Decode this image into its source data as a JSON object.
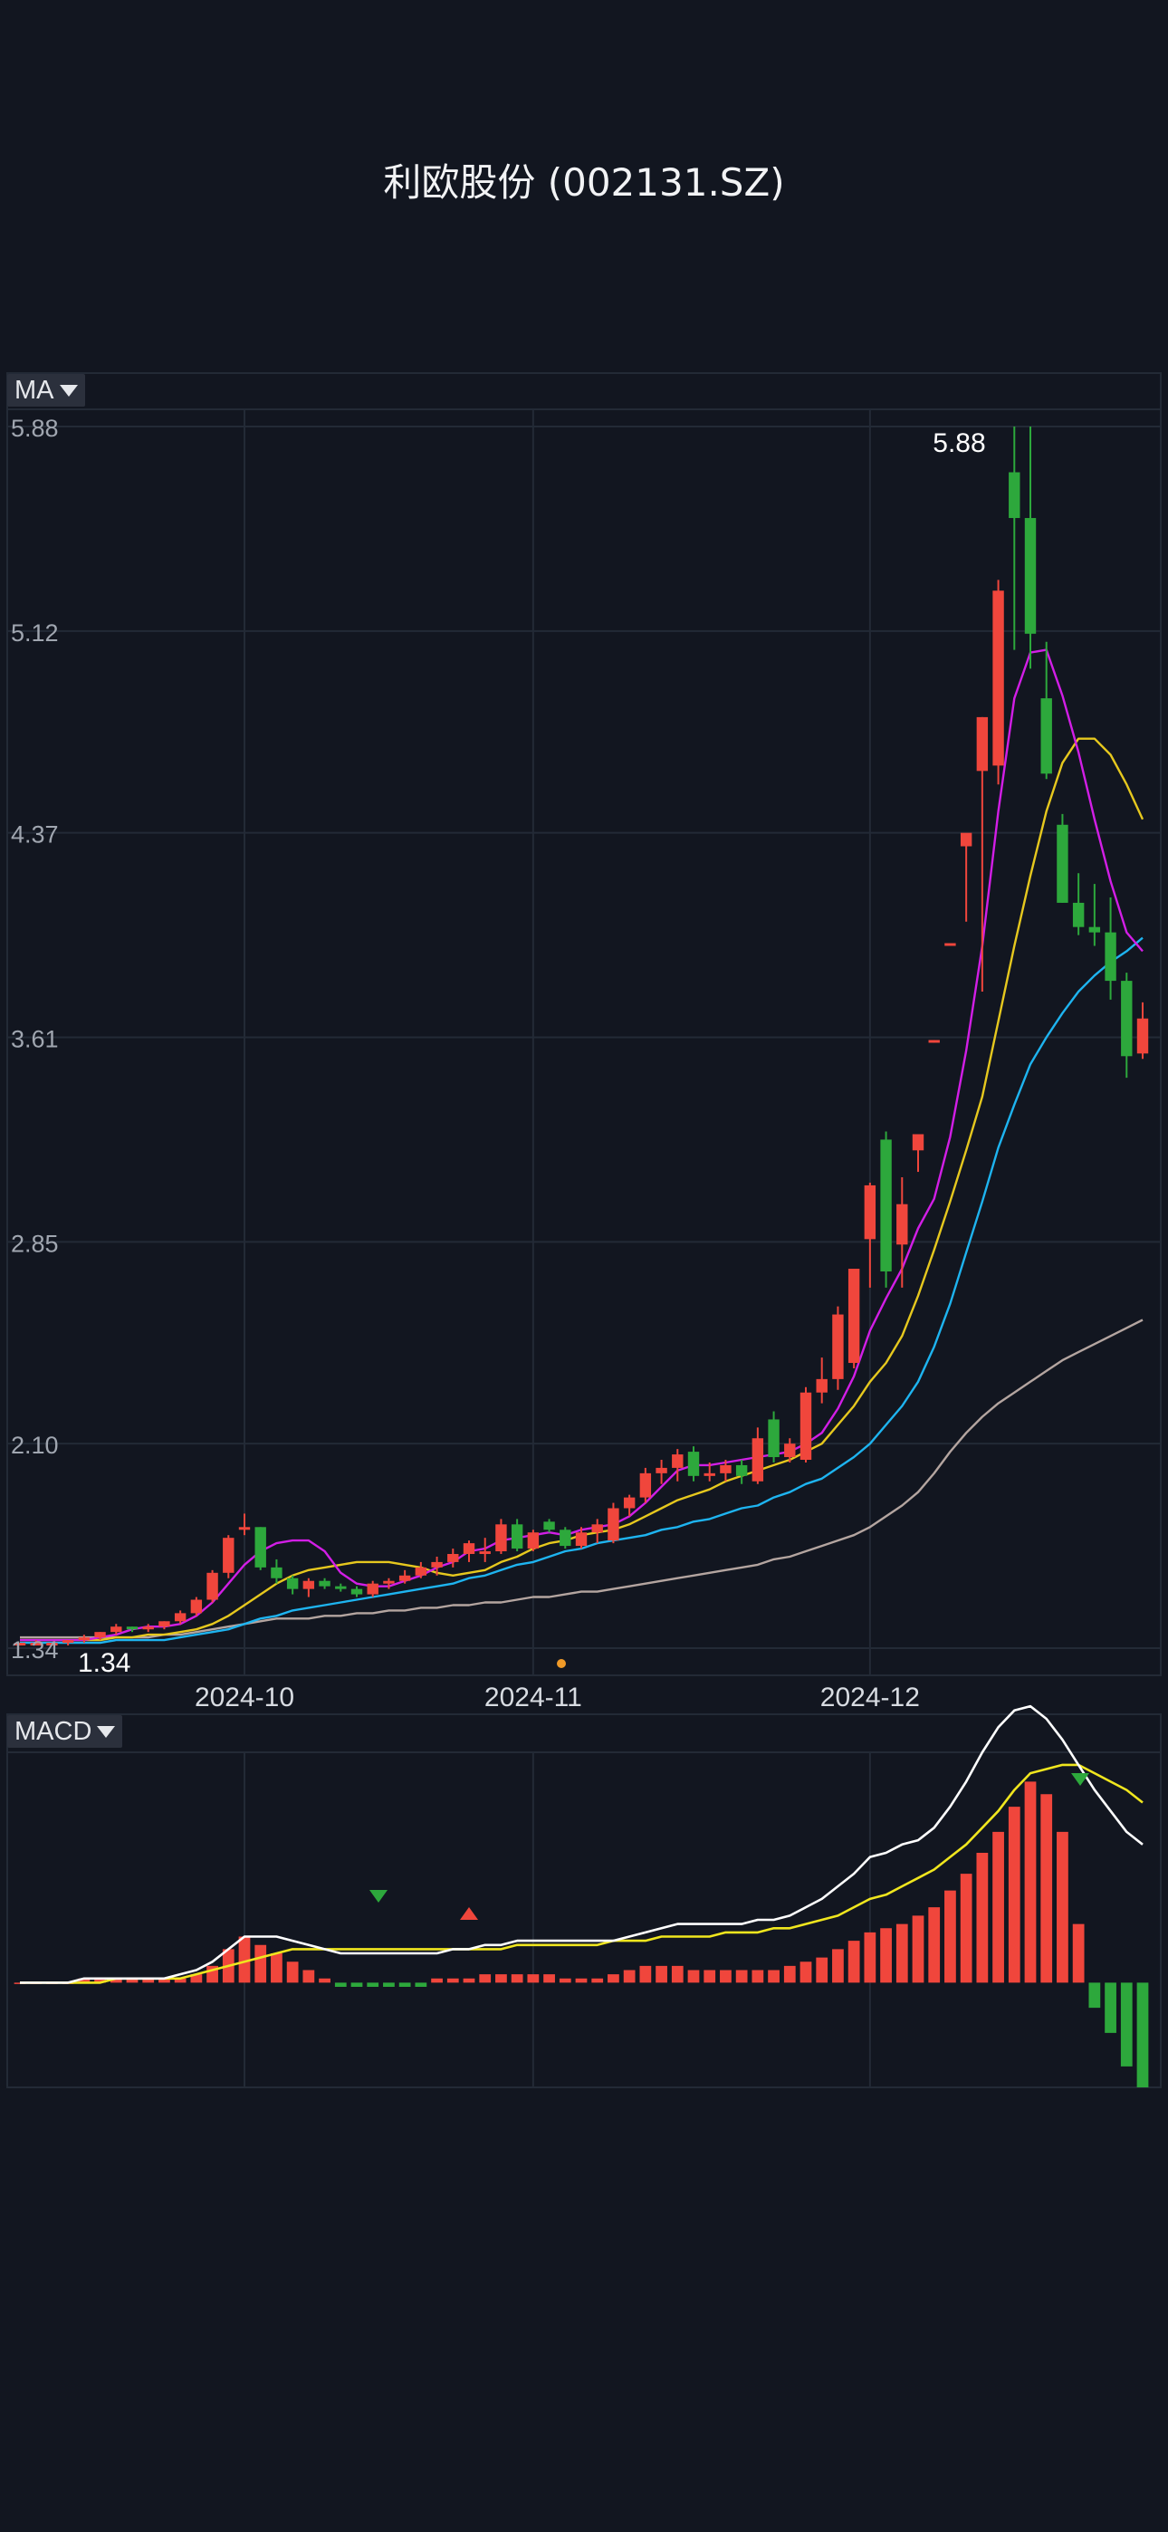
{
  "title": "利欧股份 (002131.SZ)",
  "ma_button": {
    "label": "MA"
  },
  "macd_button": {
    "label": "MACD"
  },
  "colors": {
    "background": "#121620",
    "grid": "#232a36",
    "up": "#f0463c",
    "down": "#2da83c",
    "ma5": "#d21ee6",
    "ma10": "#e6c81e",
    "ma20": "#1eb4f0",
    "ma60": "#b4a5a0",
    "dif": "#ffffff",
    "dea": "#f0e61e",
    "axis_text": "#a0a6b0"
  },
  "chart_data": [
    {
      "type": "candlestick",
      "y_ticks": [
        "5.88",
        "5.12",
        "4.37",
        "3.61",
        "2.85",
        "2.10",
        "1.34"
      ],
      "ylim": [
        1.34,
        5.88
      ],
      "x_ticks": [
        {
          "label": "2024-10",
          "index": 14
        },
        {
          "label": "2024-11",
          "index": 32
        },
        {
          "label": "2024-12",
          "index": 53
        }
      ],
      "max_label": "5.88",
      "min_label": "1.34",
      "candles": [
        [
          1.36,
          1.36,
          1.35,
          1.36
        ],
        [
          1.36,
          1.37,
          1.35,
          1.36
        ],
        [
          1.36,
          1.36,
          1.35,
          1.36
        ],
        [
          1.36,
          1.37,
          1.35,
          1.37
        ],
        [
          1.37,
          1.39,
          1.36,
          1.38
        ],
        [
          1.38,
          1.4,
          1.37,
          1.4
        ],
        [
          1.4,
          1.43,
          1.39,
          1.42
        ],
        [
          1.42,
          1.42,
          1.4,
          1.41
        ],
        [
          1.41,
          1.43,
          1.4,
          1.42
        ],
        [
          1.42,
          1.44,
          1.41,
          1.44
        ],
        [
          1.44,
          1.48,
          1.43,
          1.47
        ],
        [
          1.47,
          1.53,
          1.46,
          1.52
        ],
        [
          1.52,
          1.63,
          1.51,
          1.62
        ],
        [
          1.62,
          1.76,
          1.6,
          1.75
        ],
        [
          1.79,
          1.84,
          1.76,
          1.79
        ],
        [
          1.79,
          1.79,
          1.63,
          1.64
        ],
        [
          1.64,
          1.67,
          1.58,
          1.6
        ],
        [
          1.6,
          1.61,
          1.54,
          1.56
        ],
        [
          1.56,
          1.6,
          1.53,
          1.59
        ],
        [
          1.59,
          1.6,
          1.56,
          1.57
        ],
        [
          1.57,
          1.58,
          1.55,
          1.56
        ],
        [
          1.56,
          1.57,
          1.53,
          1.54
        ],
        [
          1.54,
          1.59,
          1.53,
          1.58
        ],
        [
          1.58,
          1.6,
          1.56,
          1.59
        ],
        [
          1.59,
          1.63,
          1.58,
          1.61
        ],
        [
          1.61,
          1.66,
          1.6,
          1.64
        ],
        [
          1.64,
          1.68,
          1.61,
          1.66
        ],
        [
          1.66,
          1.71,
          1.64,
          1.69
        ],
        [
          1.69,
          1.74,
          1.66,
          1.73
        ],
        [
          1.69,
          1.75,
          1.66,
          1.7
        ],
        [
          1.7,
          1.82,
          1.69,
          1.8
        ],
        [
          1.8,
          1.82,
          1.7,
          1.71
        ],
        [
          1.71,
          1.78,
          1.7,
          1.77
        ],
        [
          1.81,
          1.82,
          1.77,
          1.78
        ],
        [
          1.78,
          1.79,
          1.71,
          1.72
        ],
        [
          1.72,
          1.79,
          1.71,
          1.77
        ],
        [
          1.77,
          1.82,
          1.73,
          1.8
        ],
        [
          1.74,
          1.88,
          1.73,
          1.86
        ],
        [
          1.86,
          1.91,
          1.83,
          1.9
        ],
        [
          1.9,
          2.01,
          1.88,
          1.99
        ],
        [
          1.99,
          2.04,
          1.95,
          2.01
        ],
        [
          2.01,
          2.08,
          1.96,
          2.06
        ],
        [
          2.07,
          2.09,
          1.96,
          1.98
        ],
        [
          1.98,
          2.03,
          1.96,
          1.99
        ],
        [
          1.99,
          2.04,
          1.96,
          2.02
        ],
        [
          2.02,
          2.04,
          1.95,
          1.98
        ],
        [
          1.96,
          2.16,
          1.95,
          2.12
        ],
        [
          2.19,
          2.22,
          2.03,
          2.05
        ],
        [
          2.05,
          2.12,
          2.03,
          2.1
        ],
        [
          2.04,
          2.31,
          2.03,
          2.29
        ],
        [
          2.29,
          2.42,
          2.25,
          2.34
        ],
        [
          2.34,
          2.61,
          2.3,
          2.58
        ],
        [
          2.4,
          2.74,
          2.38,
          2.75
        ],
        [
          2.86,
          3.07,
          2.68,
          3.06
        ],
        [
          3.23,
          3.26,
          2.68,
          2.74
        ],
        [
          2.84,
          3.09,
          2.68,
          2.99
        ],
        [
          3.19,
          3.23,
          3.11,
          3.25
        ],
        [
          3.59,
          3.6,
          3.59,
          3.6
        ],
        [
          3.96,
          3.96,
          3.95,
          3.96
        ],
        [
          4.32,
          4.36,
          4.04,
          4.37
        ],
        [
          4.6,
          4.8,
          3.78,
          4.8
        ],
        [
          4.62,
          5.31,
          4.55,
          5.27
        ],
        [
          5.71,
          5.88,
          5.05,
          5.54
        ],
        [
          5.54,
          5.88,
          4.98,
          5.11
        ],
        [
          4.87,
          5.08,
          4.57,
          4.59
        ],
        [
          4.4,
          4.44,
          4.11,
          4.11
        ],
        [
          4.11,
          4.22,
          3.99,
          4.02
        ],
        [
          4.02,
          4.18,
          3.95,
          4.0
        ],
        [
          4.0,
          4.13,
          3.75,
          3.82
        ],
        [
          3.82,
          3.85,
          3.46,
          3.54
        ],
        [
          3.55,
          3.74,
          3.53,
          3.68
        ]
      ],
      "ma5": [
        1.37,
        1.37,
        1.37,
        1.37,
        1.37,
        1.38,
        1.39,
        1.41,
        1.42,
        1.42,
        1.43,
        1.46,
        1.51,
        1.58,
        1.65,
        1.7,
        1.73,
        1.74,
        1.74,
        1.7,
        1.62,
        1.58,
        1.57,
        1.57,
        1.59,
        1.61,
        1.64,
        1.66,
        1.7,
        1.71,
        1.74,
        1.75,
        1.76,
        1.77,
        1.76,
        1.78,
        1.79,
        1.8,
        1.83,
        1.88,
        1.94,
        2.0,
        2.02,
        2.02,
        2.03,
        2.04,
        2.05,
        2.06,
        2.07,
        2.1,
        2.14,
        2.23,
        2.35,
        2.52,
        2.64,
        2.75,
        2.9,
        3.01,
        3.24,
        3.56,
        3.95,
        4.45,
        4.87,
        5.04,
        5.05,
        4.88,
        4.67,
        4.42,
        4.19,
        4.0,
        3.93
      ],
      "ma10": [
        1.37,
        1.37,
        1.37,
        1.37,
        1.37,
        1.37,
        1.38,
        1.38,
        1.39,
        1.39,
        1.4,
        1.41,
        1.43,
        1.46,
        1.5,
        1.54,
        1.58,
        1.61,
        1.63,
        1.64,
        1.65,
        1.66,
        1.66,
        1.66,
        1.65,
        1.64,
        1.62,
        1.61,
        1.62,
        1.63,
        1.66,
        1.68,
        1.71,
        1.73,
        1.74,
        1.76,
        1.77,
        1.78,
        1.8,
        1.83,
        1.86,
        1.89,
        1.91,
        1.93,
        1.96,
        1.98,
        2.0,
        2.02,
        2.04,
        2.07,
        2.1,
        2.17,
        2.24,
        2.33,
        2.4,
        2.5,
        2.65,
        2.82,
        3.0,
        3.19,
        3.39,
        3.67,
        3.95,
        4.21,
        4.45,
        4.63,
        4.72,
        4.72,
        4.66,
        4.55,
        4.42
      ],
      "ma20": [
        1.36,
        1.36,
        1.36,
        1.36,
        1.36,
        1.36,
        1.37,
        1.37,
        1.37,
        1.37,
        1.38,
        1.39,
        1.4,
        1.41,
        1.43,
        1.45,
        1.46,
        1.48,
        1.49,
        1.5,
        1.51,
        1.52,
        1.53,
        1.54,
        1.55,
        1.56,
        1.57,
        1.58,
        1.6,
        1.61,
        1.63,
        1.65,
        1.66,
        1.68,
        1.7,
        1.71,
        1.73,
        1.74,
        1.75,
        1.76,
        1.78,
        1.79,
        1.81,
        1.82,
        1.84,
        1.86,
        1.87,
        1.9,
        1.92,
        1.95,
        1.97,
        2.01,
        2.05,
        2.1,
        2.17,
        2.24,
        2.33,
        2.46,
        2.62,
        2.81,
        3.0,
        3.2,
        3.36,
        3.51,
        3.61,
        3.7,
        3.78,
        3.84,
        3.89,
        3.93,
        3.98
      ],
      "ma60": [
        1.38,
        1.38,
        1.38,
        1.38,
        1.38,
        1.38,
        1.38,
        1.38,
        1.38,
        1.39,
        1.39,
        1.4,
        1.41,
        1.42,
        1.43,
        1.44,
        1.45,
        1.45,
        1.45,
        1.46,
        1.46,
        1.47,
        1.47,
        1.48,
        1.48,
        1.49,
        1.49,
        1.5,
        1.5,
        1.51,
        1.51,
        1.52,
        1.53,
        1.53,
        1.54,
        1.55,
        1.55,
        1.56,
        1.57,
        1.58,
        1.59,
        1.6,
        1.61,
        1.62,
        1.63,
        1.64,
        1.65,
        1.67,
        1.68,
        1.7,
        1.72,
        1.74,
        1.76,
        1.79,
        1.83,
        1.87,
        1.92,
        1.99,
        2.07,
        2.14,
        2.2,
        2.25,
        2.29,
        2.33,
        2.37,
        2.41,
        2.44,
        2.47,
        2.5,
        2.53,
        2.56
      ]
    },
    {
      "type": "macd",
      "ylim": [
        -0.25,
        0.55
      ],
      "dif": [
        0.0,
        0.0,
        0.0,
        0.0,
        0.01,
        0.01,
        0.01,
        0.01,
        0.01,
        0.01,
        0.02,
        0.03,
        0.05,
        0.08,
        0.11,
        0.11,
        0.11,
        0.1,
        0.09,
        0.08,
        0.07,
        0.07,
        0.07,
        0.07,
        0.07,
        0.07,
        0.07,
        0.08,
        0.08,
        0.09,
        0.09,
        0.1,
        0.1,
        0.1,
        0.1,
        0.1,
        0.1,
        0.1,
        0.11,
        0.12,
        0.13,
        0.14,
        0.14,
        0.14,
        0.14,
        0.14,
        0.15,
        0.15,
        0.16,
        0.18,
        0.2,
        0.23,
        0.26,
        0.3,
        0.31,
        0.33,
        0.34,
        0.37,
        0.42,
        0.48,
        0.55,
        0.61,
        0.65,
        0.66,
        0.63,
        0.58,
        0.52,
        0.46,
        0.41,
        0.36,
        0.33
      ],
      "dea": [
        0.0,
        0.0,
        0.0,
        0.0,
        0.0,
        0.0,
        0.01,
        0.01,
        0.01,
        0.01,
        0.01,
        0.02,
        0.03,
        0.04,
        0.05,
        0.06,
        0.07,
        0.08,
        0.08,
        0.08,
        0.08,
        0.08,
        0.08,
        0.08,
        0.08,
        0.08,
        0.08,
        0.08,
        0.08,
        0.08,
        0.08,
        0.09,
        0.09,
        0.09,
        0.09,
        0.09,
        0.09,
        0.1,
        0.1,
        0.1,
        0.11,
        0.11,
        0.11,
        0.11,
        0.12,
        0.12,
        0.12,
        0.13,
        0.13,
        0.14,
        0.15,
        0.16,
        0.18,
        0.2,
        0.21,
        0.23,
        0.25,
        0.27,
        0.3,
        0.33,
        0.37,
        0.41,
        0.46,
        0.5,
        0.51,
        0.52,
        0.52,
        0.5,
        0.48,
        0.46,
        0.43
      ],
      "hist": [
        0.0,
        0.0,
        0.0,
        0.0,
        0.01,
        0.01,
        0.01,
        0.01,
        0.01,
        0.01,
        0.01,
        0.02,
        0.04,
        0.08,
        0.11,
        0.09,
        0.07,
        0.05,
        0.03,
        0.01,
        -0.01,
        -0.01,
        -0.01,
        -0.01,
        -0.01,
        -0.01,
        0.01,
        0.01,
        0.01,
        0.02,
        0.02,
        0.02,
        0.02,
        0.02,
        0.01,
        0.01,
        0.01,
        0.02,
        0.03,
        0.04,
        0.04,
        0.04,
        0.03,
        0.03,
        0.03,
        0.03,
        0.03,
        0.03,
        0.04,
        0.05,
        0.06,
        0.08,
        0.1,
        0.12,
        0.13,
        0.14,
        0.16,
        0.18,
        0.22,
        0.26,
        0.31,
        0.36,
        0.42,
        0.48,
        0.45,
        0.36,
        0.14,
        -0.06,
        -0.12,
        -0.2,
        -0.25
      ]
    }
  ]
}
